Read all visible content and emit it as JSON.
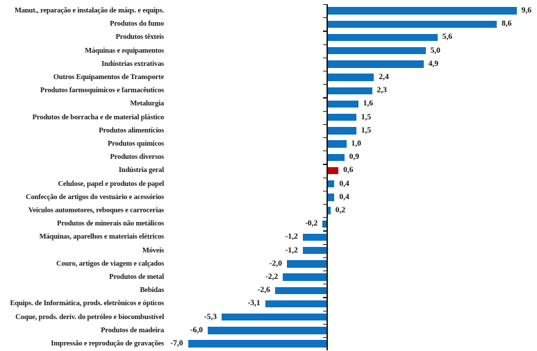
{
  "chart_data": {
    "type": "bar",
    "orientation": "horizontal",
    "title": "",
    "xlabel": "",
    "ylabel": "",
    "xlim": [
      -7.5,
      10.5
    ],
    "grid": false,
    "legend": "none",
    "axis_position": "zero",
    "decimal_separator": ",",
    "categories": [
      "Manut., reparação e instalação de máqs. e equips.",
      "Produtos do fumo",
      "Produtos têxteis",
      "Máquinas e equipamentos",
      "Indústrias extrativas",
      "Outros Equipamentos de Transporte",
      "Produtos farmoquímicos e farmacêuticos",
      "Metalurgia",
      "Produtos de borracha e de material plástico",
      "Produtos alimentícios",
      "Produtos químicos",
      "Produtos diversos",
      "Indústria geral",
      "Celulose, papel e produtos de papel",
      "Confecção de artigos do vestuário e acessórios",
      "Veículos automotores, reboques e carrocerias",
      "Produtos de minerais não metálicos",
      "Máquinas, aparelhos e materiais elétricos",
      "Móveis",
      "Couro, artigos de viagem e calçados",
      "Produtos de metal",
      "Bebidas",
      "Equips. de Informática, prods. eletrônicos e ópticos",
      "Coque, prods. deriv. do petróleo e biocombustível",
      "Produtos de madeira",
      "Impressão e reprodução de gravações"
    ],
    "values": [
      9.6,
      8.6,
      5.6,
      5.0,
      4.9,
      2.4,
      2.3,
      1.6,
      1.5,
      1.5,
      1.0,
      0.9,
      0.6,
      0.4,
      0.4,
      0.2,
      -0.2,
      -1.2,
      -1.2,
      -2.0,
      -2.2,
      -2.6,
      -3.1,
      -5.3,
      -6.0,
      -7.0
    ],
    "display_values": [
      "9,6",
      "8,6",
      "5,6",
      "5,0",
      "4,9",
      "2,4",
      "2,3",
      "1,6",
      "1,5",
      "1,5",
      "1,0",
      "0,9",
      "0,6",
      "0,4",
      "0,4",
      "0,2",
      "-0,2",
      "-1,2",
      "-1,2",
      "-2,0",
      "-2,2",
      "-2,6",
      "-3,1",
      "-5,3",
      "-6,0",
      "-7,0"
    ],
    "highlight_category": "Indústria geral",
    "highlight_index": 12,
    "colors": {
      "bar": "#0F72C1",
      "highlight_bar": "#C00000",
      "category_text": "#1C1C1C",
      "value_text": "#111111",
      "axis": "#1A1A1A",
      "background": "#FFFFFF"
    }
  }
}
